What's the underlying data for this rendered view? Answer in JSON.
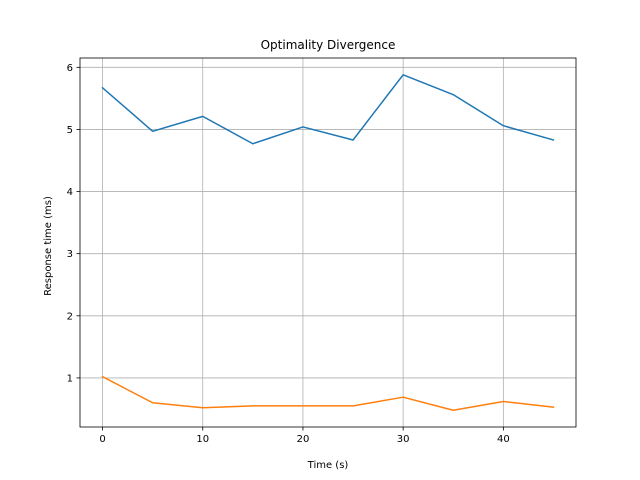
{
  "chart_data": {
    "type": "line",
    "title": "Optimality Divergence",
    "xlabel": "Time (s)",
    "ylabel": "Response time (ms)",
    "x": [
      0,
      5,
      10,
      15,
      20,
      25,
      30,
      35,
      40,
      45
    ],
    "series": [
      {
        "color": "#1f77b4",
        "values": [
          5.67,
          4.97,
          5.21,
          4.77,
          5.04,
          4.83,
          5.88,
          5.56,
          5.06,
          4.83
        ]
      },
      {
        "color": "#ff7f0e",
        "values": [
          1.02,
          0.6,
          0.52,
          0.55,
          0.55,
          0.55,
          0.69,
          0.48,
          0.62,
          0.53
        ]
      }
    ],
    "xlim": [
      -2.25,
      47.25
    ],
    "ylim": [
      0.21,
      6.15
    ],
    "xticks": [
      0,
      10,
      20,
      30,
      40
    ],
    "yticks": [
      1,
      2,
      3,
      4,
      5,
      6
    ],
    "grid": true,
    "legend": "none"
  }
}
